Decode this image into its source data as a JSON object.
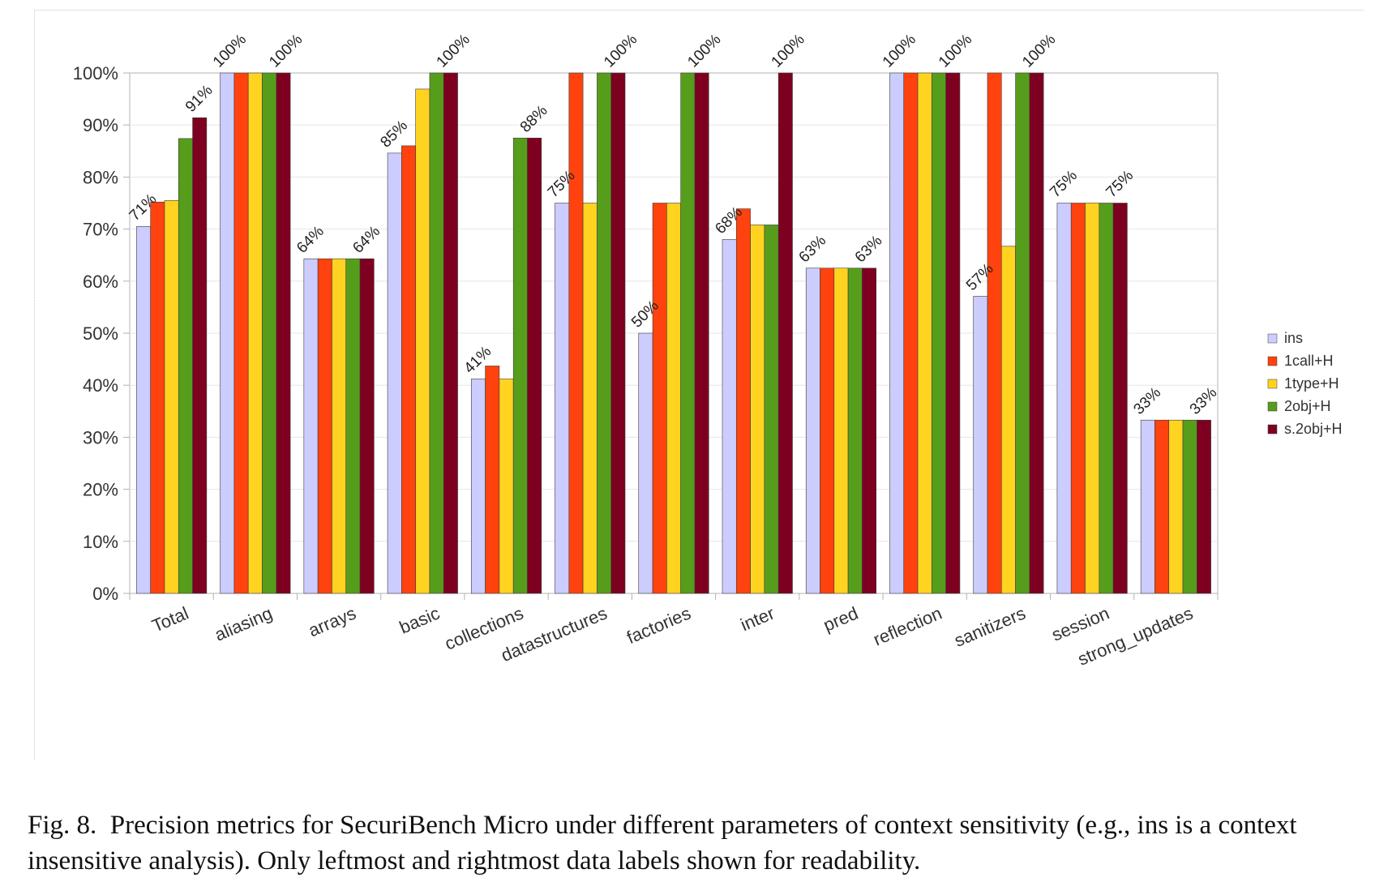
{
  "chart_data": {
    "type": "bar",
    "ylim": [
      0,
      100
    ],
    "y_ticks": [
      "0%",
      "10%",
      "20%",
      "30%",
      "40%",
      "50%",
      "60%",
      "70%",
      "80%",
      "90%",
      "100%"
    ],
    "y_tick_values": [
      0,
      10,
      20,
      30,
      40,
      50,
      60,
      70,
      80,
      90,
      100
    ],
    "grid": true,
    "legend_position": "right",
    "categories": [
      "Total",
      "aliasing",
      "arrays",
      "basic",
      "collections",
      "datastructures",
      "factories",
      "inter",
      "pred",
      "reflection",
      "sanitizers",
      "session",
      "strong_updates"
    ],
    "series": [
      {
        "name": "ins",
        "color": "#ccccff",
        "values": [
          70.5,
          100,
          64.3,
          84.6,
          41.2,
          75,
          50,
          68,
          62.5,
          100,
          57.1,
          75,
          33.3
        ]
      },
      {
        "name": "1call+H",
        "color": "#ff420e",
        "values": [
          75.2,
          100,
          64.3,
          86,
          43.7,
          100,
          75,
          73.9,
          62.5,
          100,
          100,
          75,
          33.3
        ]
      },
      {
        "name": "1type+H",
        "color": "#ffd320",
        "values": [
          75.5,
          100,
          64.3,
          96.9,
          41.2,
          75,
          75,
          70.8,
          62.5,
          100,
          66.7,
          75,
          33.3
        ]
      },
      {
        "name": "2obj+H",
        "color": "#579d1c",
        "values": [
          87.4,
          100,
          64.3,
          100,
          87.5,
          100,
          100,
          70.8,
          62.5,
          100,
          100,
          75,
          33.3
        ]
      },
      {
        "name": "s.2obj+H",
        "color": "#7e0021",
        "values": [
          91.4,
          100,
          64.3,
          100,
          87.5,
          100,
          100,
          100,
          62.5,
          100,
          100,
          75,
          33.3
        ]
      }
    ],
    "data_labels": [
      {
        "category": "Total",
        "left": "71%",
        "right": "91%"
      },
      {
        "category": "aliasing",
        "left": "100%",
        "right": "100%"
      },
      {
        "category": "arrays",
        "left": "64%",
        "right": "64%"
      },
      {
        "category": "basic",
        "left": "85%",
        "right": "100%"
      },
      {
        "category": "collections",
        "left": "41%",
        "right": "88%"
      },
      {
        "category": "datastructures",
        "left": "75%",
        "right": "100%"
      },
      {
        "category": "factories",
        "left": "50%",
        "right": "100%"
      },
      {
        "category": "inter",
        "left": "68%",
        "right": "100%"
      },
      {
        "category": "pred",
        "left": "63%",
        "right": "63%"
      },
      {
        "category": "reflection",
        "left": "100%",
        "right": "100%"
      },
      {
        "category": "sanitizers",
        "left": "57%",
        "right": "100%"
      },
      {
        "category": "session",
        "left": "75%",
        "right": "75%"
      },
      {
        "category": "strong_updates",
        "left": "33%",
        "right": "33%"
      }
    ],
    "colors": {
      "grid": "#e6e6e6",
      "axis": "#b3b3b3",
      "bar_border": "#3c3c3c"
    }
  },
  "caption": {
    "label": "Fig. 8.",
    "text": "Precision metrics for SecuriBench Micro under different parameters of context sensitivity (e.g., ins is a context insensitive analysis). Only leftmost and rightmost data labels shown for readability."
  }
}
